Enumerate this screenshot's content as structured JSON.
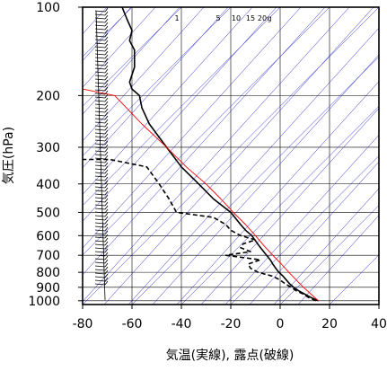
{
  "chart_data": {
    "type": "line",
    "xlabel": "気温(実線), 露点(破線)",
    "ylabel": "気圧(hPa)",
    "xlim": [
      -80,
      40
    ],
    "ylim": [
      1030,
      100
    ],
    "y_scale": "log",
    "grid": true,
    "x_ticks": [
      "-80",
      "-60",
      "-40",
      "-20",
      "0",
      "20",
      "40"
    ],
    "x_tick_values": [
      -80,
      -60,
      -40,
      -20,
      0,
      20,
      40
    ],
    "y_ticks": [
      "100",
      "200",
      "300",
      "400",
      "500",
      "600",
      "700",
      "800",
      "900",
      "1000"
    ],
    "y_tick_values": [
      100,
      200,
      300,
      400,
      500,
      600,
      700,
      800,
      900,
      1000
    ],
    "mixing_ratio_labels": [
      "1",
      "5",
      "10",
      "15",
      "20",
      "g"
    ],
    "colors": {
      "temperature": "#000000",
      "dewpoint": "#000000",
      "parcel": "#ff0000",
      "isotherms": "#2222cc",
      "dry_adiabats": "#2222cc",
      "grid": "#000000",
      "wind_barbs": "#000000"
    },
    "series": [
      {
        "style": "solid",
        "values": [
          [
            1000,
            15.5
          ],
          [
            975,
            12.5
          ],
          [
            950,
            10
          ],
          [
            925,
            7.5
          ],
          [
            900,
            5.5
          ],
          [
            875,
            3.8
          ],
          [
            850,
            2.5
          ],
          [
            825,
            1.2
          ],
          [
            800,
            -0.5
          ],
          [
            775,
            -1.8
          ],
          [
            750,
            -3
          ],
          [
            725,
            -4
          ],
          [
            700,
            -5.5
          ],
          [
            650,
            -8.5
          ],
          [
            600,
            -11.5
          ],
          [
            575,
            -14
          ],
          [
            550,
            -16
          ],
          [
            500,
            -20
          ],
          [
            450,
            -27
          ],
          [
            400,
            -33
          ],
          [
            350,
            -40
          ],
          [
            300,
            -46
          ],
          [
            250,
            -53
          ],
          [
            220,
            -56
          ],
          [
            200,
            -57
          ],
          [
            190,
            -60
          ],
          [
            180,
            -61
          ],
          [
            160,
            -59
          ],
          [
            140,
            -59
          ],
          [
            130,
            -61
          ],
          [
            120,
            -60
          ],
          [
            110,
            -62
          ],
          [
            100,
            -64
          ]
        ]
      },
      {
        "style": "dashed",
        "values": [
          [
            1000,
            14.5
          ],
          [
            975,
            11.5
          ],
          [
            950,
            9.5
          ],
          [
            925,
            6.5
          ],
          [
            900,
            4.5
          ],
          [
            875,
            2
          ],
          [
            850,
            0
          ],
          [
            825,
            -3
          ],
          [
            800,
            -9
          ],
          [
            775,
            -12
          ],
          [
            750,
            -13
          ],
          [
            725,
            -8
          ],
          [
            700,
            -22
          ],
          [
            680,
            -12
          ],
          [
            660,
            -16
          ],
          [
            640,
            -15
          ],
          [
            620,
            -10
          ],
          [
            600,
            -16
          ],
          [
            575,
            -20
          ],
          [
            550,
            -22
          ],
          [
            520,
            -27
          ],
          [
            500,
            -42
          ],
          [
            450,
            -45
          ],
          [
            400,
            -49
          ],
          [
            350,
            -54
          ],
          [
            330,
            -69
          ],
          [
            330,
            -80
          ]
        ]
      },
      {
        "style": "solid",
        "values": [
          [
            1000,
            15.5
          ],
          [
            950,
            12.5
          ],
          [
            900,
            9.5
          ],
          [
            850,
            6.5
          ],
          [
            800,
            3.5
          ],
          [
            750,
            0.5
          ],
          [
            700,
            -3
          ],
          [
            650,
            -6.5
          ],
          [
            600,
            -10
          ],
          [
            550,
            -14
          ],
          [
            500,
            -19
          ],
          [
            450,
            -24
          ],
          [
            400,
            -30
          ],
          [
            350,
            -38
          ],
          [
            300,
            -46
          ],
          [
            250,
            -56
          ],
          [
            200,
            -67
          ],
          [
            190,
            -80
          ]
        ]
      }
    ]
  }
}
